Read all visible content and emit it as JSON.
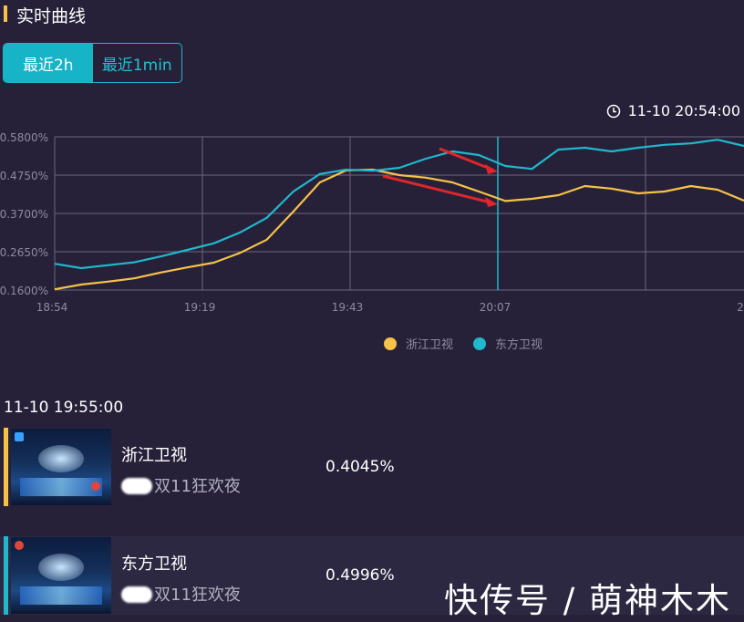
{
  "header": {
    "title": "实时曲线"
  },
  "tabs": [
    {
      "label": "最近2h",
      "active": true
    },
    {
      "label": "最近1min",
      "active": false
    }
  ],
  "timestamp": "11-10 20:54:00",
  "chart_data": {
    "type": "line",
    "x": [
      "18:54",
      "18:58",
      "19:02",
      "19:06",
      "19:10",
      "19:14",
      "19:18",
      "19:22",
      "19:26",
      "19:30",
      "19:34",
      "19:38",
      "19:40",
      "19:43",
      "19:46",
      "19:50",
      "19:54",
      "19:56",
      "19:58",
      "20:02",
      "20:06",
      "20:10",
      "20:14",
      "20:18",
      "20:22",
      "20:26",
      "20:30"
    ],
    "xticks": [
      "18:54",
      "19:19",
      "19:43",
      "20:07",
      "2"
    ],
    "yticks": [
      "0.1600%",
      "0.2650%",
      "0.3700%",
      "0.4750%",
      "0.5800%"
    ],
    "ylim": [
      0.16,
      0.58
    ],
    "series": [
      {
        "name": "浙江卫视",
        "color": "#f6c247",
        "values": [
          0.162,
          0.175,
          0.183,
          0.192,
          0.208,
          0.222,
          0.235,
          0.262,
          0.298,
          0.375,
          0.455,
          0.488,
          0.49,
          0.475,
          0.468,
          0.455,
          0.43,
          0.404,
          0.41,
          0.42,
          0.445,
          0.438,
          0.425,
          0.43,
          0.445,
          0.435,
          0.405
        ]
      },
      {
        "name": "东方卫视",
        "color": "#1fb8cc",
        "values": [
          0.232,
          0.22,
          0.228,
          0.236,
          0.252,
          0.27,
          0.288,
          0.318,
          0.358,
          0.43,
          0.478,
          0.49,
          0.487,
          0.495,
          0.52,
          0.54,
          0.53,
          0.5,
          0.492,
          0.545,
          0.55,
          0.54,
          0.55,
          0.558,
          0.562,
          0.572,
          0.555
        ]
      }
    ],
    "legend": "bottom-center",
    "grid": true
  },
  "snapshot_time": "11-10 19:55:00",
  "channels": [
    {
      "name": "浙江卫视",
      "program": "双11狂欢夜",
      "value": "0.4045%",
      "color": "#f6c247"
    },
    {
      "name": "东方卫视",
      "program": "双11狂欢夜",
      "value": "0.4996%",
      "color": "#1fb8cc"
    }
  ],
  "watermark": "快传号 / 萌神木木",
  "colors": {
    "background": "#262139",
    "accent_yellow": "#f6c247",
    "accent_cyan": "#1fb8cc",
    "annotation_arrow": "#e0262b"
  }
}
